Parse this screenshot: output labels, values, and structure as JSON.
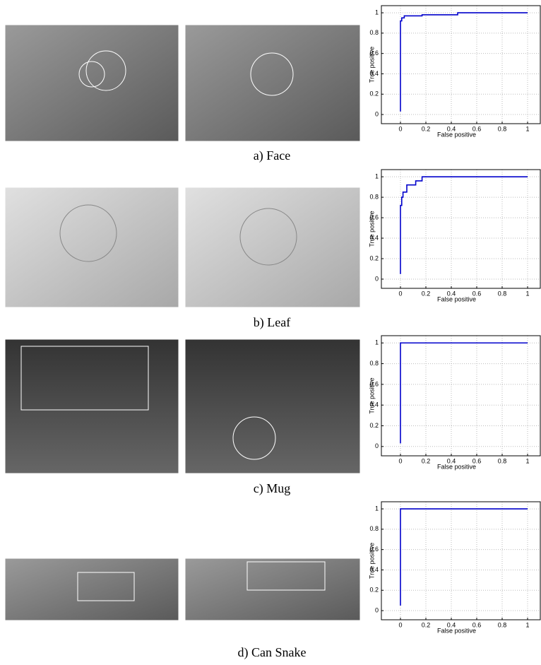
{
  "captions": [
    "a) Face",
    "b) Leaf",
    "c) Mug",
    "d) Can Snake"
  ],
  "chart_data": [
    {
      "type": "line",
      "xlabel": "False positive",
      "ylabel": "True positive",
      "color": "#0000cc",
      "x": [
        0,
        0,
        0.01,
        0.01,
        0.03,
        0.03,
        0.17,
        0.17,
        0.45,
        0.45,
        1
      ],
      "values": [
        0.03,
        0.92,
        0.92,
        0.95,
        0.95,
        0.97,
        0.97,
        0.98,
        0.98,
        1,
        1
      ],
      "xlim": [
        -0.15,
        1.1
      ],
      "ylim": [
        -0.09,
        1.07
      ],
      "xticks": [
        0,
        0.2,
        0.4,
        0.6,
        0.8,
        1
      ],
      "yticks": [
        0,
        0.2,
        0.4,
        0.6,
        0.8,
        1
      ],
      "grid": true
    },
    {
      "type": "line",
      "xlabel": "False positive",
      "ylabel": "True positive",
      "color": "#0000cc",
      "x": [
        0,
        0,
        0.01,
        0.01,
        0.02,
        0.02,
        0.05,
        0.05,
        0.12,
        0.12,
        0.17,
        0.17,
        1
      ],
      "values": [
        0.05,
        0.72,
        0.72,
        0.8,
        0.8,
        0.85,
        0.85,
        0.92,
        0.92,
        0.96,
        0.96,
        1,
        1
      ],
      "xlim": [
        -0.15,
        1.1
      ],
      "ylim": [
        -0.09,
        1.07
      ],
      "xticks": [
        0,
        0.2,
        0.4,
        0.6,
        0.8,
        1
      ],
      "yticks": [
        0,
        0.2,
        0.4,
        0.6,
        0.8,
        1
      ],
      "grid": true
    },
    {
      "type": "line",
      "xlabel": "False positive",
      "ylabel": "True positive",
      "color": "#0000cc",
      "x": [
        0,
        0,
        1
      ],
      "values": [
        0.03,
        1,
        1
      ],
      "xlim": [
        -0.15,
        1.1
      ],
      "ylim": [
        -0.09,
        1.07
      ],
      "xticks": [
        0,
        0.2,
        0.4,
        0.6,
        0.8,
        1
      ],
      "yticks": [
        0,
        0.2,
        0.4,
        0.6,
        0.8,
        1
      ],
      "grid": true
    },
    {
      "type": "line",
      "xlabel": "False positive",
      "ylabel": "True positive",
      "color": "#0000cc",
      "x": [
        0,
        0,
        1
      ],
      "values": [
        0.05,
        1,
        1
      ],
      "xlim": [
        -0.15,
        1.1
      ],
      "ylim": [
        -0.09,
        1.07
      ],
      "xticks": [
        0,
        0.2,
        0.4,
        0.6,
        0.8,
        1
      ],
      "yticks": [
        0,
        0.2,
        0.4,
        0.6,
        0.8,
        1
      ],
      "grid": true
    }
  ]
}
